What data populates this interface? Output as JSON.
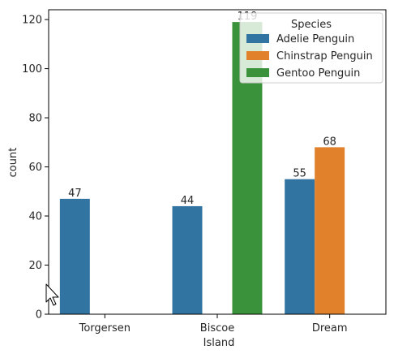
{
  "chart_data": {
    "type": "bar",
    "xlabel": "Island",
    "ylabel": "count",
    "categories": [
      "Torgersen",
      "Biscoe",
      "Dream"
    ],
    "ylim": [
      0,
      124
    ],
    "yticks": [
      0,
      20,
      40,
      60,
      80,
      100,
      120
    ],
    "grid": false,
    "legend": {
      "title": "Species",
      "placement": "top-right"
    },
    "series": [
      {
        "name": "Adelie Penguin",
        "color": "#3274a1",
        "values": [
          47,
          44,
          55
        ]
      },
      {
        "name": "Chinstrap Penguin",
        "color": "#e1812c",
        "values": [
          null,
          null,
          68
        ]
      },
      {
        "name": "Gentoo Penguin",
        "color": "#3a923a",
        "values": [
          null,
          119,
          null
        ]
      }
    ]
  },
  "cursor": {
    "icon": "mouse-pointer-icon"
  }
}
